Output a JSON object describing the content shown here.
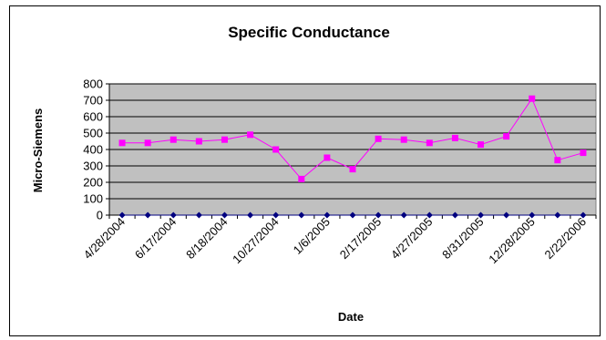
{
  "chart_data": {
    "type": "line",
    "title": "Specific Conductance",
    "xlabel": "Date",
    "ylabel": "Micro-Siemens",
    "ylim": [
      0,
      800
    ],
    "yticks": [
      0,
      100,
      200,
      300,
      400,
      500,
      600,
      700,
      800
    ],
    "grid": true,
    "legend": "none",
    "plot_background": "#c0c0c0",
    "x_tick_labels": [
      "4/28/2004",
      "6/17/2004",
      "8/18/2004",
      "10/27/2004",
      "1/6/2005",
      "2/17/2005",
      "4/27/2005",
      "8/31/2005",
      "12/28/2005",
      "2/22/2006"
    ],
    "series": [
      {
        "color": "#ff00ff",
        "marker": "square",
        "values": [
          440,
          440,
          460,
          450,
          460,
          490,
          400,
          220,
          350,
          280,
          465,
          460,
          440,
          470,
          430,
          480,
          710,
          335,
          380
        ]
      },
      {
        "color": "#000080",
        "marker": "diamond",
        "values": [
          0,
          0,
          0,
          0,
          0,
          0,
          0,
          0,
          0,
          0,
          0,
          0,
          0,
          0,
          0,
          0,
          0,
          0,
          0
        ]
      }
    ]
  }
}
